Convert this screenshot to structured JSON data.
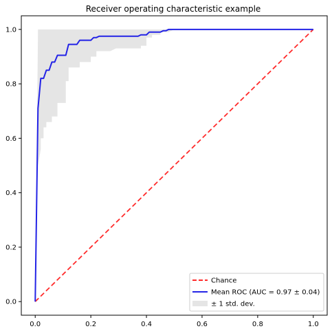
{
  "chart_data": {
    "type": "line",
    "title": "Receiver operating characteristic example",
    "xlabel": "",
    "ylabel": "",
    "xlim": [
      -0.05,
      1.05
    ],
    "ylim": [
      -0.05,
      1.05
    ],
    "x_ticks": [
      0.0,
      0.2,
      0.4,
      0.6,
      0.8,
      1.0
    ],
    "x_tick_labels": [
      "0.0",
      "0.2",
      "0.4",
      "0.6",
      "0.8",
      "1.0"
    ],
    "y_ticks": [
      0.0,
      0.2,
      0.4,
      0.6,
      0.8,
      1.0
    ],
    "y_tick_labels": [
      "0.0",
      "0.2",
      "0.4",
      "0.6",
      "0.8",
      "1.0"
    ],
    "grid": false,
    "legend_position": "lower-right",
    "series": [
      {
        "name": "Chance",
        "style": "dashed",
        "color": "#ff2a2a",
        "x": [
          0,
          1
        ],
        "y": [
          0,
          1
        ]
      },
      {
        "name": "Mean ROC (AUC = 0.97 ± 0.04)",
        "style": "solid",
        "color": "#2323e6",
        "x": [
          0,
          0.01,
          0.02,
          0.03,
          0.04,
          0.05,
          0.06,
          0.07,
          0.08,
          0.11,
          0.12,
          0.15,
          0.16,
          0.2,
          0.21,
          0.22,
          0.23,
          0.3,
          0.37,
          0.38,
          0.4,
          0.41,
          0.45,
          0.46,
          0.47,
          0.48,
          0.49,
          0.5,
          1.0
        ],
        "y": [
          0,
          0.71,
          0.82,
          0.82,
          0.85,
          0.85,
          0.88,
          0.88,
          0.905,
          0.905,
          0.945,
          0.945,
          0.96,
          0.96,
          0.97,
          0.97,
          0.975,
          0.975,
          0.975,
          0.98,
          0.98,
          0.99,
          0.99,
          0.995,
          0.995,
          1.0,
          1.0,
          1.0,
          1.0
        ]
      }
    ],
    "band": {
      "name": "± 1 std. dev.",
      "color": "#cfcfcf",
      "upper": {
        "x": [
          0,
          0.01,
          0.02,
          0.35,
          0.36,
          0.4,
          0.41,
          0.42,
          1.0
        ],
        "y": [
          0,
          1.0,
          1.0,
          1.0,
          1.0,
          1.0,
          1.0,
          1.0,
          1.0
        ]
      },
      "lower": {
        "x": [
          0,
          0.005,
          0.01,
          0.02,
          0.02,
          0.03,
          0.03,
          0.04,
          0.04,
          0.06,
          0.06,
          0.08,
          0.08,
          0.11,
          0.11,
          0.12,
          0.12,
          0.16,
          0.16,
          0.2,
          0.2,
          0.22,
          0.22,
          0.27,
          0.29,
          0.38,
          0.38,
          0.4,
          0.4,
          0.42,
          0.42,
          0.45,
          0.45,
          0.48,
          0.5,
          1.0
        ],
        "y": [
          0,
          0.35,
          0.5,
          0.56,
          0.6,
          0.6,
          0.64,
          0.64,
          0.66,
          0.66,
          0.68,
          0.68,
          0.73,
          0.73,
          0.81,
          0.81,
          0.86,
          0.86,
          0.88,
          0.88,
          0.9,
          0.9,
          0.92,
          0.92,
          0.93,
          0.93,
          0.94,
          0.94,
          0.97,
          0.97,
          0.98,
          0.98,
          0.99,
          0.99,
          1.0,
          1.0
        ]
      }
    }
  }
}
